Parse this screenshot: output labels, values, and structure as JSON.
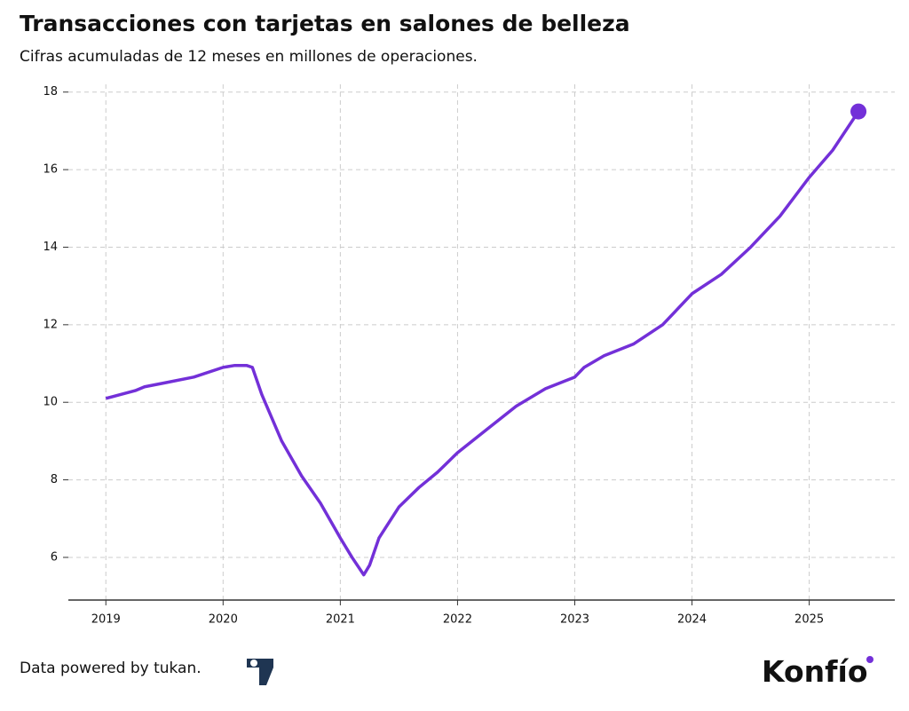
{
  "chart_data": {
    "type": "line",
    "title": "Transacciones con tarjetas en salones de belleza",
    "subtitle": "Cifras acumuladas de 12 meses en millones de operaciones.",
    "x": [
      2019.0,
      2019.25,
      2019.33,
      2019.5,
      2019.75,
      2020.0,
      2020.1,
      2020.2,
      2020.25,
      2020.33,
      2020.5,
      2020.67,
      2020.83,
      2021.0,
      2021.1,
      2021.2,
      2021.25,
      2021.33,
      2021.5,
      2021.67,
      2021.83,
      2022.0,
      2022.25,
      2022.5,
      2022.75,
      2023.0,
      2023.08,
      2023.25,
      2023.5,
      2023.75,
      2024.0,
      2024.25,
      2024.5,
      2024.75,
      2025.0,
      2025.2,
      2025.42
    ],
    "series": [
      {
        "name": "Transacciones",
        "color": "#7330d8",
        "values": [
          10.1,
          10.3,
          10.4,
          10.5,
          10.65,
          10.9,
          10.95,
          10.95,
          10.9,
          10.2,
          9.0,
          8.1,
          7.4,
          6.5,
          6.0,
          5.55,
          5.8,
          6.5,
          7.3,
          7.8,
          8.2,
          8.7,
          9.3,
          9.9,
          10.35,
          10.65,
          10.9,
          11.2,
          11.5,
          12.0,
          12.8,
          13.3,
          14.0,
          14.8,
          15.8,
          16.5,
          17.5
        ]
      }
    ],
    "xlim": [
      2018.68,
      2025.73
    ],
    "xticks": [
      2019,
      2020,
      2021,
      2022,
      2023,
      2024,
      2025
    ],
    "ylim": [
      4.9,
      18.2
    ],
    "yticks": [
      6,
      8,
      10,
      12,
      14,
      16,
      18
    ],
    "grid": true
  },
  "footer": {
    "source": "Data powered by tukan.",
    "brand": "Konfío"
  }
}
